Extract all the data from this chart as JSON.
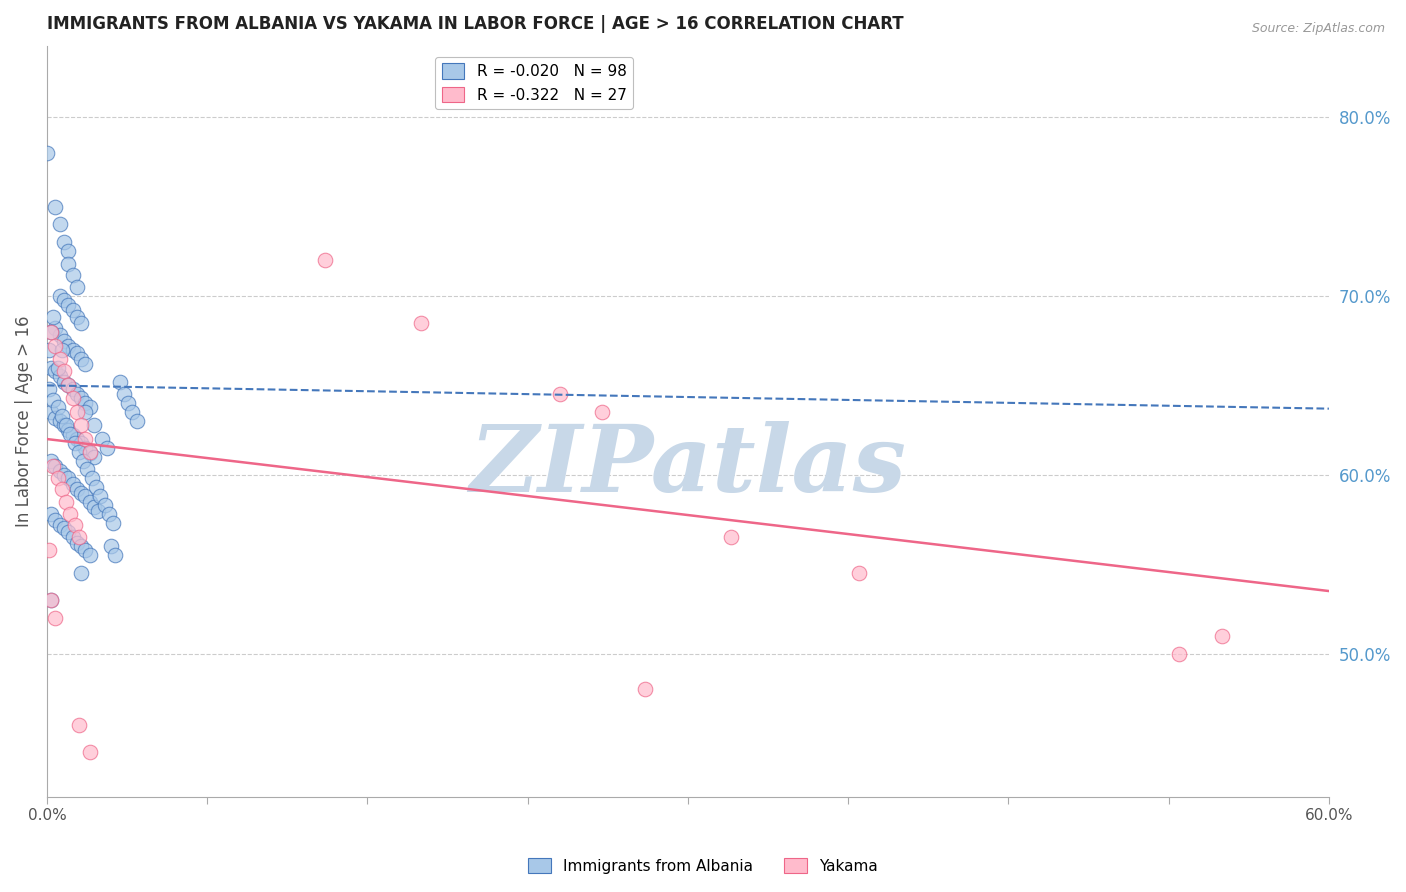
{
  "title": "IMMIGRANTS FROM ALBANIA VS YAKAMA IN LABOR FORCE | AGE > 16 CORRELATION CHART",
  "source": "Source: ZipAtlas.com",
  "ylabel": "In Labor Force | Age > 16",
  "xlim": [
    0.0,
    0.6
  ],
  "ylim": [
    0.42,
    0.84
  ],
  "xticks": [
    0.0,
    0.075,
    0.15,
    0.225,
    0.3,
    0.375,
    0.45,
    0.525,
    0.6
  ],
  "xticklabels_show": {
    "0.0": "0.0%",
    "0.60": "60.0%"
  },
  "right_yticks": [
    0.5,
    0.6,
    0.7,
    0.8
  ],
  "right_yticklabels": [
    "50.0%",
    "60.0%",
    "70.0%",
    "80.0%"
  ],
  "albania_color": "#a8c8e8",
  "albania_edge_color": "#4477bb",
  "yakama_color": "#ffbbcc",
  "yakama_edge_color": "#ee6688",
  "albania_line_color": "#4477bb",
  "yakama_line_color": "#ee6688",
  "grid_color": "#cccccc",
  "watermark_text": "ZIPatlas",
  "watermark_color": "#c8d8e8",
  "right_axis_color": "#5599cc",
  "albania_dots": [
    [
      0.0,
      0.78
    ],
    [
      0.004,
      0.75
    ],
    [
      0.006,
      0.74
    ],
    [
      0.008,
      0.73
    ],
    [
      0.01,
      0.725
    ],
    [
      0.01,
      0.718
    ],
    [
      0.012,
      0.712
    ],
    [
      0.014,
      0.705
    ],
    [
      0.006,
      0.7
    ],
    [
      0.008,
      0.698
    ],
    [
      0.01,
      0.695
    ],
    [
      0.012,
      0.692
    ],
    [
      0.014,
      0.688
    ],
    [
      0.016,
      0.685
    ],
    [
      0.004,
      0.682
    ],
    [
      0.006,
      0.678
    ],
    [
      0.008,
      0.675
    ],
    [
      0.01,
      0.672
    ],
    [
      0.012,
      0.67
    ],
    [
      0.014,
      0.668
    ],
    [
      0.016,
      0.665
    ],
    [
      0.018,
      0.662
    ],
    [
      0.002,
      0.66
    ],
    [
      0.004,
      0.658
    ],
    [
      0.006,
      0.655
    ],
    [
      0.008,
      0.652
    ],
    [
      0.01,
      0.65
    ],
    [
      0.012,
      0.648
    ],
    [
      0.014,
      0.645
    ],
    [
      0.016,
      0.643
    ],
    [
      0.018,
      0.64
    ],
    [
      0.02,
      0.638
    ],
    [
      0.002,
      0.635
    ],
    [
      0.004,
      0.632
    ],
    [
      0.006,
      0.63
    ],
    [
      0.008,
      0.628
    ],
    [
      0.01,
      0.625
    ],
    [
      0.012,
      0.622
    ],
    [
      0.014,
      0.62
    ],
    [
      0.016,
      0.618
    ],
    [
      0.018,
      0.615
    ],
    [
      0.02,
      0.612
    ],
    [
      0.022,
      0.61
    ],
    [
      0.002,
      0.608
    ],
    [
      0.004,
      0.605
    ],
    [
      0.006,
      0.602
    ],
    [
      0.008,
      0.6
    ],
    [
      0.01,
      0.598
    ],
    [
      0.012,
      0.595
    ],
    [
      0.014,
      0.592
    ],
    [
      0.016,
      0.59
    ],
    [
      0.018,
      0.588
    ],
    [
      0.02,
      0.585
    ],
    [
      0.022,
      0.582
    ],
    [
      0.024,
      0.58
    ],
    [
      0.002,
      0.578
    ],
    [
      0.004,
      0.575
    ],
    [
      0.006,
      0.572
    ],
    [
      0.008,
      0.57
    ],
    [
      0.01,
      0.568
    ],
    [
      0.012,
      0.565
    ],
    [
      0.014,
      0.562
    ],
    [
      0.016,
      0.56
    ],
    [
      0.018,
      0.558
    ],
    [
      0.02,
      0.555
    ],
    [
      0.001,
      0.648
    ],
    [
      0.003,
      0.642
    ],
    [
      0.005,
      0.638
    ],
    [
      0.007,
      0.633
    ],
    [
      0.009,
      0.628
    ],
    [
      0.011,
      0.623
    ],
    [
      0.013,
      0.618
    ],
    [
      0.015,
      0.613
    ],
    [
      0.017,
      0.608
    ],
    [
      0.019,
      0.603
    ],
    [
      0.021,
      0.598
    ],
    [
      0.023,
      0.593
    ],
    [
      0.025,
      0.588
    ],
    [
      0.027,
      0.583
    ],
    [
      0.029,
      0.578
    ],
    [
      0.031,
      0.573
    ],
    [
      0.018,
      0.635
    ],
    [
      0.022,
      0.628
    ],
    [
      0.026,
      0.62
    ],
    [
      0.028,
      0.615
    ],
    [
      0.002,
      0.53
    ],
    [
      0.016,
      0.545
    ],
    [
      0.03,
      0.56
    ],
    [
      0.032,
      0.555
    ],
    [
      0.034,
      0.652
    ],
    [
      0.036,
      0.645
    ],
    [
      0.038,
      0.64
    ],
    [
      0.04,
      0.635
    ],
    [
      0.042,
      0.63
    ],
    [
      0.003,
      0.688
    ],
    [
      0.001,
      0.67
    ],
    [
      0.002,
      0.68
    ],
    [
      0.005,
      0.66
    ],
    [
      0.007,
      0.67
    ]
  ],
  "yakama_dots": [
    [
      0.002,
      0.68
    ],
    [
      0.004,
      0.672
    ],
    [
      0.006,
      0.665
    ],
    [
      0.008,
      0.658
    ],
    [
      0.01,
      0.65
    ],
    [
      0.012,
      0.643
    ],
    [
      0.014,
      0.635
    ],
    [
      0.016,
      0.628
    ],
    [
      0.018,
      0.62
    ],
    [
      0.02,
      0.613
    ],
    [
      0.003,
      0.605
    ],
    [
      0.005,
      0.598
    ],
    [
      0.007,
      0.592
    ],
    [
      0.009,
      0.585
    ],
    [
      0.011,
      0.578
    ],
    [
      0.013,
      0.572
    ],
    [
      0.015,
      0.565
    ],
    [
      0.001,
      0.558
    ],
    [
      0.13,
      0.72
    ],
    [
      0.175,
      0.685
    ],
    [
      0.24,
      0.645
    ],
    [
      0.26,
      0.635
    ],
    [
      0.32,
      0.565
    ],
    [
      0.38,
      0.545
    ],
    [
      0.002,
      0.53
    ],
    [
      0.004,
      0.52
    ],
    [
      0.55,
      0.51
    ],
    [
      0.53,
      0.5
    ],
    [
      0.015,
      0.46
    ],
    [
      0.02,
      0.445
    ],
    [
      0.28,
      0.48
    ]
  ],
  "albania_trend": [
    0.0,
    0.65,
    0.6,
    0.637
  ],
  "yakama_trend": [
    0.0,
    0.62,
    0.6,
    0.535
  ]
}
